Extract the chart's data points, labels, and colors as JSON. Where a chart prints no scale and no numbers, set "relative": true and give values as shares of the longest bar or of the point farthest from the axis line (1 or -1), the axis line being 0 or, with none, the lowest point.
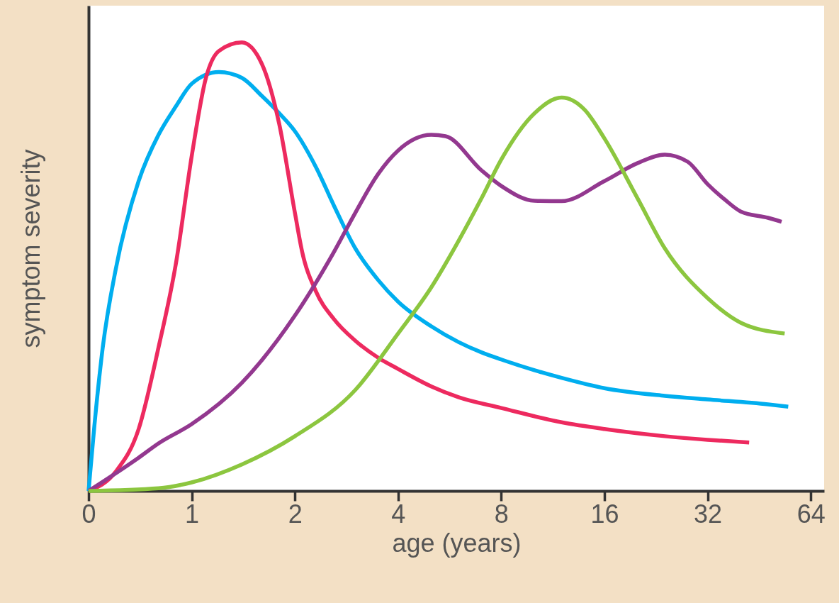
{
  "chart_data": {
    "type": "line",
    "xlabel": "age (years)",
    "ylabel": "symptom severity",
    "relative": true,
    "log": "x",
    "xlim": [
      0.5,
      70
    ],
    "xticks": [
      {
        "value": 0.5,
        "label": "0"
      },
      1,
      2,
      4,
      8,
      16,
      32,
      64
    ],
    "grid": false,
    "series": [
      {
        "color": "#00aeef",
        "x": [
          0.5,
          0.52,
          0.55,
          0.6,
          0.7,
          0.8,
          0.9,
          1,
          1.2,
          1.4,
          1.6,
          1.8,
          2,
          2.3,
          2.6,
          3,
          3.5,
          4,
          5,
          6,
          7,
          8,
          10,
          12,
          16,
          24,
          32,
          48,
          55
        ],
        "values": [
          0,
          0.146,
          0.32,
          0.494,
          0.691,
          0.794,
          0.858,
          0.908,
          0.934,
          0.921,
          0.881,
          0.842,
          0.802,
          0.723,
          0.636,
          0.541,
          0.47,
          0.422,
          0.367,
          0.332,
          0.309,
          0.293,
          0.269,
          0.252,
          0.229,
          0.212,
          0.204,
          0.193,
          0.188
        ]
      },
      {
        "color": "#ed2a5f",
        "x": [
          0.5,
          0.6,
          0.7,
          0.8,
          0.9,
          1,
          1.1,
          1.2,
          1.4,
          1.6,
          1.8,
          2,
          2.1,
          2.3,
          2.6,
          3,
          3.5,
          4,
          5,
          6,
          8,
          12,
          16,
          24,
          32,
          42.3
        ],
        "values": [
          0,
          0.043,
          0.138,
          0.32,
          0.509,
          0.747,
          0.921,
          0.981,
          1,
          0.953,
          0.818,
          0.62,
          0.533,
          0.446,
          0.383,
          0.335,
          0.297,
          0.272,
          0.233,
          0.209,
          0.185,
          0.153,
          0.138,
          0.122,
          0.114,
          0.108
        ]
      },
      {
        "color": "#93388f",
        "x": [
          0.5,
          0.7,
          0.8,
          1,
          1.4,
          2,
          2.6,
          3,
          3.5,
          4,
          5,
          5.5,
          7,
          8,
          10,
          12,
          16,
          20,
          24,
          28,
          32,
          36,
          40,
          48,
          52.6
        ],
        "values": [
          0,
          0.074,
          0.106,
          0.149,
          0.241,
          0.391,
          0.533,
          0.62,
          0.707,
          0.759,
          0.794,
          0.791,
          0.715,
          0.68,
          0.647,
          0.646,
          0.691,
          0.731,
          0.75,
          0.734,
          0.684,
          0.649,
          0.623,
          0.609,
          0.6
        ]
      },
      {
        "color": "#8cc63f",
        "x": [
          0.5,
          0.8,
          1,
          1.4,
          2,
          3,
          4,
          5,
          6,
          7,
          8,
          10,
          12,
          14,
          16,
          20,
          24,
          32,
          40,
          53.7
        ],
        "values": [
          0,
          0.006,
          0.019,
          0.059,
          0.122,
          0.225,
          0.351,
          0.454,
          0.557,
          0.652,
          0.739,
          0.842,
          0.877,
          0.85,
          0.786,
          0.652,
          0.541,
          0.43,
          0.375,
          0.351
        ]
      }
    ]
  }
}
